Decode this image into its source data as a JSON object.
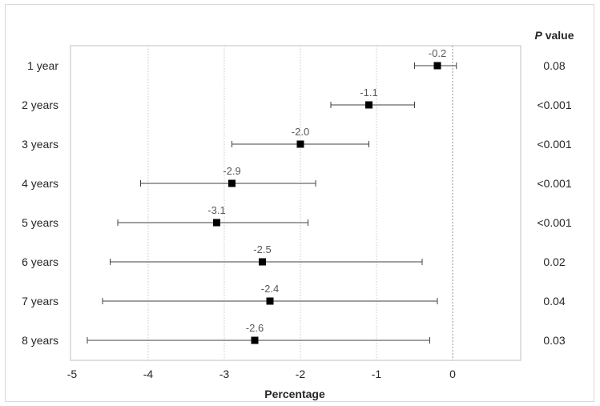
{
  "chart_data": {
    "type": "forest",
    "xlabel": "Percentage",
    "xlim": [
      -5,
      0.9
    ],
    "xticks": [
      -5,
      -4,
      -3,
      -2,
      -1,
      0
    ],
    "grid": "vertical dotted",
    "reference_line": 0,
    "pvalue_header": {
      "italic": "P",
      "rest": " value"
    },
    "rows": [
      {
        "label": "1 year",
        "estimate": -0.2,
        "estimate_label": "-0.2",
        "ci_low": -0.5,
        "ci_high": 0.05,
        "p": "0.08"
      },
      {
        "label": "2 years",
        "estimate": -1.1,
        "estimate_label": "-1.1",
        "ci_low": -1.6,
        "ci_high": -0.5,
        "p": "<0.001"
      },
      {
        "label": "3 years",
        "estimate": -2.0,
        "estimate_label": "-2.0",
        "ci_low": -2.9,
        "ci_high": -1.1,
        "p": "<0.001"
      },
      {
        "label": "4 years",
        "estimate": -2.9,
        "estimate_label": "-2.9",
        "ci_low": -4.1,
        "ci_high": -1.8,
        "p": "<0.001"
      },
      {
        "label": "5 years",
        "estimate": -3.1,
        "estimate_label": "-3.1",
        "ci_low": -4.4,
        "ci_high": -1.9,
        "p": "<0.001"
      },
      {
        "label": "6 years",
        "estimate": -2.5,
        "estimate_label": "-2.5",
        "ci_low": -4.5,
        "ci_high": -0.4,
        "p": "0.02"
      },
      {
        "label": "7 years",
        "estimate": -2.4,
        "estimate_label": "-2.4",
        "ci_low": -4.6,
        "ci_high": -0.2,
        "p": "0.04"
      },
      {
        "label": "8 years",
        "estimate": -2.6,
        "estimate_label": "-2.6",
        "ci_low": -4.8,
        "ci_high": -0.3,
        "p": "0.03"
      }
    ],
    "colors": {
      "marker": "#000000",
      "whisker": "#404040",
      "plot_border": "#bfbfbf",
      "grid": "#c8c8c8",
      "reference": "#a6a6a6"
    }
  }
}
